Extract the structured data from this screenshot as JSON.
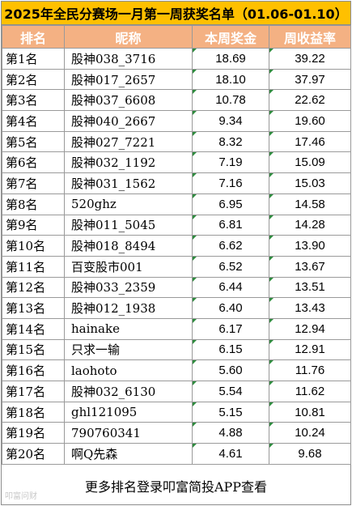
{
  "title": "2025年全民分赛场一月第一周获奖名单（01.06-01.10）",
  "headers": [
    "排名",
    "昵称",
    "本周奖金",
    "周收益率"
  ],
  "rows": [
    {
      "rank": "第1名",
      "name": "股神038_3716",
      "bonus": "18.69",
      "return": "39.22"
    },
    {
      "rank": "第2名",
      "name": "股神017_2657",
      "bonus": "18.10",
      "return": "37.97"
    },
    {
      "rank": "第3名",
      "name": "股神037_6608",
      "bonus": "10.78",
      "return": "22.62"
    },
    {
      "rank": "第4名",
      "name": "股神040_2667",
      "bonus": "9.34",
      "return": "19.60"
    },
    {
      "rank": "第5名",
      "name": "股神027_7221",
      "bonus": "8.32",
      "return": "17.46"
    },
    {
      "rank": "第6名",
      "name": "股神032_1192",
      "bonus": "7.19",
      "return": "15.09"
    },
    {
      "rank": "第7名",
      "name": "股神031_1562",
      "bonus": "7.16",
      "return": "15.03"
    },
    {
      "rank": "第8名",
      "name": "520ghz",
      "bonus": "6.95",
      "return": "14.58"
    },
    {
      "rank": "第9名",
      "name": "股神011_5045",
      "bonus": "6.81",
      "return": "14.28"
    },
    {
      "rank": "第10名",
      "name": "股神018_8494",
      "bonus": "6.62",
      "return": "13.90"
    },
    {
      "rank": "第11名",
      "name": "百变股市001",
      "bonus": "6.52",
      "return": "13.67"
    },
    {
      "rank": "第12名",
      "name": "股神033_2359",
      "bonus": "6.44",
      "return": "13.51"
    },
    {
      "rank": "第13名",
      "name": "股神012_1938",
      "bonus": "6.40",
      "return": "13.43"
    },
    {
      "rank": "第14名",
      "name": "hainake",
      "bonus": "6.17",
      "return": "12.94"
    },
    {
      "rank": "第15名",
      "name": "只求一输",
      "bonus": "6.15",
      "return": "12.91"
    },
    {
      "rank": "第16名",
      "name": "laohoto",
      "bonus": "5.60",
      "return": "11.76"
    },
    {
      "rank": "第17名",
      "name": "股神032_6130",
      "bonus": "5.54",
      "return": "11.62"
    },
    {
      "rank": "第18名",
      "name": "ghl121095",
      "bonus": "5.15",
      "return": "10.81"
    },
    {
      "rank": "第19名",
      "name": "790760341",
      "bonus": "4.88",
      "return": "10.24"
    },
    {
      "rank": "第20名",
      "name": "啊Q先森",
      "bonus": "4.61",
      "return": "9.68"
    }
  ],
  "footer": "更多排名登录叩富简投APP查看",
  "watermark": "叩富问财",
  "colors": {
    "title_bg": "#ffc000",
    "header_bg": "#f4b183",
    "header_text": "#ffffff",
    "indicator": "#2e8b3e"
  }
}
